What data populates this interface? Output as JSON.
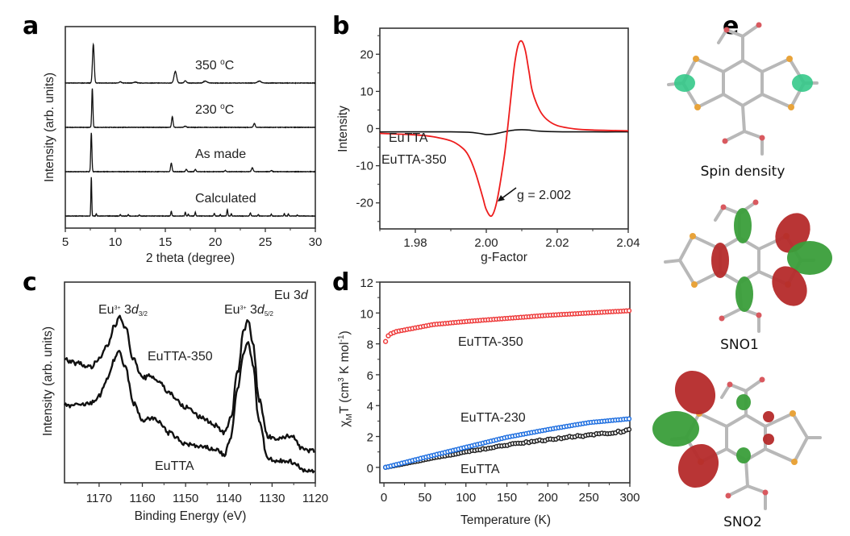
{
  "figure": {
    "panel_letters": [
      "a",
      "b",
      "c",
      "d",
      "e"
    ]
  },
  "chart_data": [
    {
      "id": "a",
      "type": "line",
      "title": "",
      "xlabel": "2 theta (degree)",
      "ylabel": "Intensity (arb. units)",
      "xlim": [
        5,
        30
      ],
      "xticks": [
        5,
        10,
        15,
        20,
        25,
        30
      ],
      "xtick_labels": [
        "5",
        "10",
        "15",
        "20",
        "25",
        "30"
      ],
      "yticks_visible": false,
      "stacked_offset": true,
      "series": [
        {
          "name": "350 °C",
          "label_main": "350 ",
          "label_deg": "o",
          "label_unit": "C",
          "color": "#111111",
          "baseline": 3,
          "peaks": [
            [
              7.8,
              1.0,
              0.12
            ],
            [
              10.5,
              0.03,
              0.15
            ],
            [
              12.0,
              0.025,
              0.2
            ],
            [
              16.0,
              0.3,
              0.18
            ],
            [
              17.0,
              0.06,
              0.15
            ],
            [
              19.0,
              0.05,
              0.25
            ],
            [
              24.4,
              0.05,
              0.25
            ]
          ]
        },
        {
          "name": "230 °C",
          "label_main": "230 ",
          "label_deg": "o",
          "label_unit": "C",
          "color": "#111111",
          "baseline": 2,
          "peaks": [
            [
              7.7,
              1.0,
              0.08
            ],
            [
              15.7,
              0.28,
              0.1
            ],
            [
              17.0,
              0.03,
              0.15
            ],
            [
              23.9,
              0.1,
              0.12
            ]
          ]
        },
        {
          "name": "As made",
          "label_main": "As made",
          "label_deg": "",
          "label_unit": "",
          "color": "#111111",
          "baseline": 1,
          "peaks": [
            [
              7.6,
              1.0,
              0.08
            ],
            [
              15.6,
              0.22,
              0.1
            ],
            [
              17.1,
              0.06,
              0.1
            ],
            [
              18.0,
              0.06,
              0.1
            ],
            [
              21.0,
              0.03,
              0.1
            ],
            [
              23.7,
              0.1,
              0.12
            ],
            [
              25.6,
              0.03,
              0.12
            ]
          ]
        },
        {
          "name": "Calculated",
          "label_main": "Calculated",
          "label_deg": "",
          "label_unit": "",
          "color": "#111111",
          "baseline": 0,
          "peaks": [
            [
              7.6,
              1.0,
              0.06
            ],
            [
              8.1,
              0.06,
              0.06
            ],
            [
              10.5,
              0.04,
              0.06
            ],
            [
              11.3,
              0.04,
              0.06
            ],
            [
              12.4,
              0.03,
              0.06
            ],
            [
              15.6,
              0.12,
              0.07
            ],
            [
              17.0,
              0.1,
              0.07
            ],
            [
              17.3,
              0.05,
              0.06
            ],
            [
              18.0,
              0.1,
              0.07
            ],
            [
              19.9,
              0.07,
              0.07
            ],
            [
              20.5,
              0.04,
              0.06
            ],
            [
              21.2,
              0.17,
              0.07
            ],
            [
              21.6,
              0.06,
              0.06
            ],
            [
              23.5,
              0.08,
              0.08
            ],
            [
              24.3,
              0.04,
              0.06
            ],
            [
              25.6,
              0.05,
              0.06
            ],
            [
              26.9,
              0.07,
              0.06
            ],
            [
              27.3,
              0.06,
              0.06
            ],
            [
              28.2,
              0.03,
              0.06
            ]
          ]
        }
      ]
    },
    {
      "id": "b",
      "type": "line",
      "title": "",
      "xlabel": "g-Factor",
      "ylabel": "Intensity",
      "xlim": [
        1.97,
        2.04
      ],
      "ylim": [
        -27,
        27
      ],
      "xticks": [
        1.98,
        2.0,
        2.02,
        2.04
      ],
      "xtick_labels": [
        "1.98",
        "2.00",
        "2.02",
        "2.04"
      ],
      "yticks": [
        -20,
        -10,
        0,
        10,
        20
      ],
      "ytick_labels": [
        "-20",
        "-10",
        "0",
        "10",
        "20"
      ],
      "series": [
        {
          "name": "EuTTA",
          "color": "#111111",
          "x": [
            1.97,
            1.98,
            1.99,
            1.995,
            1.998,
            2.0,
            2.002,
            2.004,
            2.006,
            2.008,
            2.01,
            2.012,
            2.015,
            2.02,
            2.03,
            2.04
          ],
          "y": [
            -0.9,
            -0.9,
            -0.9,
            -1.0,
            -1.3,
            -1.6,
            -1.5,
            -1.1,
            -0.7,
            -0.4,
            -0.3,
            -0.4,
            -0.7,
            -0.85,
            -0.9,
            -0.9
          ]
        },
        {
          "name": "EuTTA-350",
          "color": "#ee1c1c",
          "x": [
            1.97,
            1.98,
            1.985,
            1.99,
            1.993,
            1.995,
            1.997,
            1.999,
            2.0,
            2.0015,
            2.003,
            2.005,
            2.006,
            2.007,
            2.008,
            2.009,
            2.01,
            2.011,
            2.012,
            2.013,
            2.015,
            2.017,
            2.02,
            2.025,
            2.03,
            2.04
          ],
          "y": [
            -1.3,
            -1.7,
            -2.2,
            -3.3,
            -5.0,
            -7.3,
            -12.0,
            -18.5,
            -21.8,
            -23.5,
            -19.5,
            -8.0,
            0.0,
            9.0,
            17.5,
            22.5,
            23.5,
            21.0,
            15.5,
            10.0,
            5.0,
            2.5,
            0.8,
            -0.1,
            -0.4,
            -0.6
          ]
        }
      ],
      "annotations": [
        {
          "text": "g = 2.002",
          "points_to": [
            2.0015,
            -23.5
          ]
        }
      ]
    },
    {
      "id": "c",
      "type": "line",
      "title": "",
      "xlabel": "Binding Energy (eV)",
      "ylabel": "Intensity (arb. units)",
      "xlim": [
        1178,
        1120
      ],
      "x_reversed": true,
      "xticks": [
        1170,
        1160,
        1150,
        1140,
        1130,
        1120
      ],
      "xtick_labels": [
        "1170",
        "1160",
        "1150",
        "1140",
        "1130",
        "1120"
      ],
      "yticks_visible": false,
      "series": [
        {
          "name": "EuTTA-350",
          "color": "#111111",
          "x": [
            1178,
            1175,
            1172,
            1170,
            1168,
            1166.5,
            1165.2,
            1164,
            1162,
            1160,
            1158,
            1156,
            1154,
            1150,
            1146,
            1143,
            1141,
            1139.5,
            1138,
            1136.5,
            1135.5,
            1134.5,
            1133,
            1131,
            1129,
            1127,
            1125,
            1123,
            1121,
            1120
          ],
          "y": [
            0.62,
            0.6,
            0.58,
            0.62,
            0.7,
            0.8,
            0.86,
            0.8,
            0.62,
            0.52,
            0.53,
            0.5,
            0.44,
            0.36,
            0.3,
            0.26,
            0.22,
            0.3,
            0.55,
            0.78,
            0.84,
            0.72,
            0.4,
            0.2,
            0.18,
            0.2,
            0.2,
            0.13,
            0.12,
            0.12
          ]
        },
        {
          "name": "EuTTA",
          "color": "#111111",
          "x": [
            1178,
            1175,
            1172,
            1170,
            1168,
            1166.5,
            1165.3,
            1164,
            1162,
            1160,
            1158,
            1156,
            1154,
            1150,
            1146,
            1143,
            1141,
            1139.5,
            1138,
            1136.5,
            1135.5,
            1134.5,
            1133,
            1131,
            1129,
            1127,
            1125,
            1123,
            1121,
            1120
          ],
          "y": [
            0.37,
            0.37,
            0.38,
            0.42,
            0.52,
            0.62,
            0.66,
            0.58,
            0.38,
            0.29,
            0.3,
            0.28,
            0.22,
            0.16,
            0.14,
            0.13,
            0.1,
            0.2,
            0.46,
            0.66,
            0.72,
            0.6,
            0.28,
            0.08,
            0.06,
            0.07,
            0.06,
            0.02,
            0.01,
            0.01
          ]
        }
      ],
      "annotations": [
        {
          "text_main": "Eu",
          "text_sup": "3+",
          "text_after": " 3",
          "text_italic": "d",
          "text_sub": "3/2",
          "near_x": 1165
        },
        {
          "text_main": "Eu",
          "text_sup": "3+",
          "text_after": " 3",
          "text_italic": "d",
          "text_sub": "5/2",
          "near_x": 1135.5
        },
        {
          "text_main": "Eu 3",
          "text_italic": "d",
          "position": "top-right"
        }
      ]
    },
    {
      "id": "d",
      "type": "scatter",
      "title": "",
      "xlabel": "Temperature (K)",
      "ylabel_parts": {
        "chi": "χ",
        "sub": "M",
        "main": "T (cm",
        "sup": "3",
        "after": " K mol",
        "sup2": "-1",
        "end": ")"
      },
      "xlim": [
        -5,
        300
      ],
      "ylim": [
        -1,
        12
      ],
      "xticks": [
        0,
        50,
        100,
        150,
        200,
        250,
        300
      ],
      "xtick_labels": [
        "0",
        "50",
        "100",
        "150",
        "200",
        "250",
        "300"
      ],
      "yticks": [
        0,
        2,
        4,
        6,
        8,
        10,
        12
      ],
      "ytick_labels": [
        "0",
        "2",
        "4",
        "6",
        "8",
        "10",
        "12"
      ],
      "series": [
        {
          "name": "EuTTA-350",
          "color": "#ee3b3b",
          "model": "log",
          "y_at": [
            [
              2,
              8.15
            ],
            [
              6,
              8.6
            ],
            [
              15,
              8.8
            ],
            [
              30,
              8.95
            ],
            [
              60,
              9.25
            ],
            [
              100,
              9.45
            ],
            [
              150,
              9.65
            ],
            [
              200,
              9.85
            ],
            [
              250,
              10.0
            ],
            [
              300,
              10.15
            ]
          ]
        },
        {
          "name": "EuTTA-230",
          "color": "#1f6fe0",
          "model": "linear",
          "y_at": [
            [
              2,
              0.0
            ],
            [
              50,
              0.65
            ],
            [
              100,
              1.3
            ],
            [
              150,
              1.95
            ],
            [
              200,
              2.45
            ],
            [
              250,
              2.9
            ],
            [
              300,
              3.15
            ]
          ]
        },
        {
          "name": "EuTTA",
          "color": "#222222",
          "model": "linear",
          "y_at": [
            [
              2,
              0.0
            ],
            [
              50,
              0.5
            ],
            [
              100,
              1.0
            ],
            [
              150,
              1.45
            ],
            [
              200,
              1.8
            ],
            [
              250,
              2.1
            ],
            [
              300,
              2.4
            ]
          ]
        }
      ]
    }
  ],
  "molecules": {
    "captions": [
      "Spin density",
      "SNO1",
      "SNO2"
    ],
    "colors": {
      "bond": "#b8b8b8",
      "sulfur": "#e8a33a",
      "oxygen": "#d9595f",
      "spin": "#35c98a",
      "orbital_red": "#b52a2a",
      "orbital_green": "#3a9e3a"
    }
  }
}
